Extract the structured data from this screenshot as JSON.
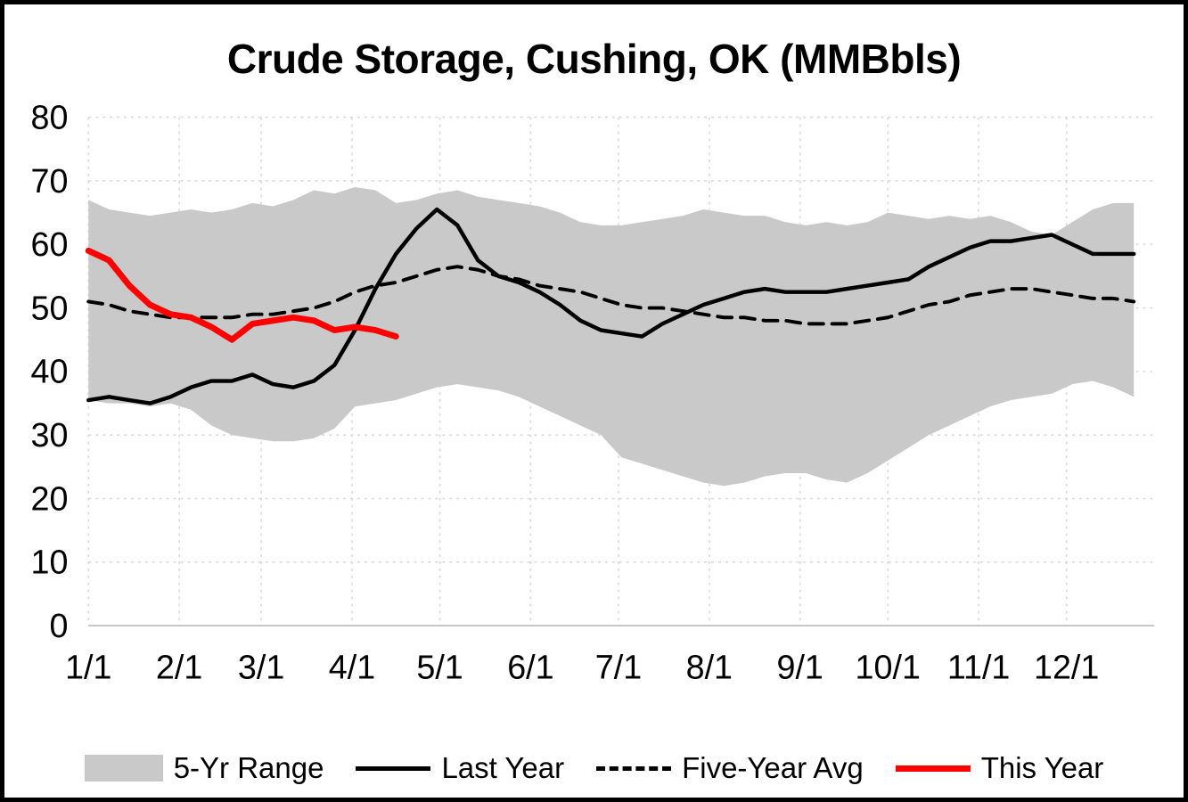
{
  "title": "Crude Storage, Cushing, OK (MMBbls)",
  "colors": {
    "range_fill": "#c9c9c9",
    "last_year": "#000000",
    "five_year_avg": "#000000",
    "this_year": "#fe0000",
    "grid": "#d9d9d9",
    "axis": "#bfbfbf"
  },
  "legend": {
    "range": "5-Yr Range",
    "last_year": "Last Year",
    "five_year_avg": "Five-Year Avg",
    "this_year": "This Year",
    "position": "bottom"
  },
  "chart_data": {
    "type": "line",
    "title": "Crude Storage, Cushing, OK (MMBbls)",
    "xlabel": "",
    "ylabel": "",
    "ylim": [
      0,
      80
    ],
    "y_ticks": [
      0,
      10,
      20,
      30,
      40,
      50,
      60,
      70,
      80
    ],
    "grid": true,
    "legend_position": "bottom",
    "x_unit": "weekly points starting 1/1, 7 days apart",
    "days_per_point": 7,
    "x_ticks": [
      {
        "label": "1/1",
        "day": 0
      },
      {
        "label": "2/1",
        "day": 31
      },
      {
        "label": "3/1",
        "day": 59
      },
      {
        "label": "4/1",
        "day": 90
      },
      {
        "label": "5/1",
        "day": 120
      },
      {
        "label": "6/1",
        "day": 151
      },
      {
        "label": "7/1",
        "day": 181
      },
      {
        "label": "8/1",
        "day": 212
      },
      {
        "label": "9/1",
        "day": 243
      },
      {
        "label": "10/1",
        "day": 273
      },
      {
        "label": "11/1",
        "day": 304
      },
      {
        "label": "12/1",
        "day": 334
      }
    ],
    "series": [
      {
        "id": "five-year-range",
        "name": "5-Yr Range",
        "type": "band",
        "upper": [
          67,
          65.5,
          65,
          64.5,
          65,
          65.5,
          65,
          65.5,
          66.5,
          66,
          67,
          68.5,
          68,
          69,
          68.5,
          66.5,
          67,
          68,
          68.5,
          67.5,
          67,
          66.5,
          66,
          65,
          63.5,
          63,
          63,
          63.5,
          64,
          64.5,
          65.5,
          65,
          64.5,
          64.5,
          63.5,
          63,
          63.5,
          63,
          63.5,
          65,
          64.5,
          64,
          64.5,
          64,
          64.5,
          63.5,
          62,
          61.5,
          63.5,
          65.5,
          66.5,
          66.5
        ],
        "lower": [
          35.5,
          35,
          35,
          34.5,
          35,
          34,
          31.5,
          30,
          29.5,
          29,
          29,
          29.5,
          31,
          34.5,
          35,
          35.5,
          36.5,
          37.5,
          38,
          37.5,
          37,
          36,
          34.5,
          33,
          31.5,
          30,
          26.5,
          25.5,
          24.5,
          23.5,
          22.5,
          22,
          22.5,
          23.5,
          24,
          24,
          23,
          22.5,
          24,
          26,
          28,
          30,
          31.5,
          33,
          34.5,
          35.5,
          36,
          36.5,
          38,
          38.5,
          37.5,
          36
        ]
      },
      {
        "id": "last-year",
        "name": "Last Year",
        "type": "line",
        "color": "#000000",
        "width": 4.5,
        "dash": "",
        "values": [
          35.5,
          36,
          35.5,
          35,
          36,
          37.5,
          38.5,
          38.5,
          39.5,
          38,
          37.5,
          38.5,
          41,
          46.5,
          53,
          58.5,
          62.5,
          65.5,
          63,
          57.5,
          55,
          54,
          52.5,
          50.5,
          48,
          46.5,
          46,
          45.5,
          47.5,
          49,
          50.5,
          51.5,
          52.5,
          53,
          52.5,
          52.5,
          52.5,
          53,
          53.5,
          54,
          54.5,
          56.5,
          58,
          59.5,
          60.5,
          60.5,
          61,
          61.5,
          60,
          58.5,
          58.5,
          58.5
        ]
      },
      {
        "id": "five-year-avg",
        "name": "Five-Year Avg",
        "type": "line",
        "color": "#000000",
        "width": 4,
        "dash": "16 10",
        "values": [
          51,
          50.5,
          49.5,
          49,
          48.5,
          48.5,
          48.5,
          48.5,
          49,
          49,
          49.5,
          50,
          51,
          52.5,
          53.5,
          54,
          55,
          56,
          56.5,
          56,
          55,
          54.5,
          53.5,
          53,
          52.5,
          51.5,
          50.5,
          50,
          50,
          49.5,
          49,
          48.5,
          48.5,
          48,
          48,
          47.5,
          47.5,
          47.5,
          48,
          48.5,
          49.5,
          50.5,
          51,
          52,
          52.5,
          53,
          53,
          52.5,
          52,
          51.5,
          51.5,
          51
        ]
      },
      {
        "id": "this-year",
        "name": "This Year",
        "type": "line",
        "color": "#fe0000",
        "width": 7,
        "dash": "",
        "values": [
          59,
          57.5,
          53.5,
          50.5,
          49,
          48.5,
          47,
          45,
          47.5,
          48,
          48.5,
          48,
          46.5,
          47,
          46.5,
          45.5
        ]
      }
    ]
  }
}
